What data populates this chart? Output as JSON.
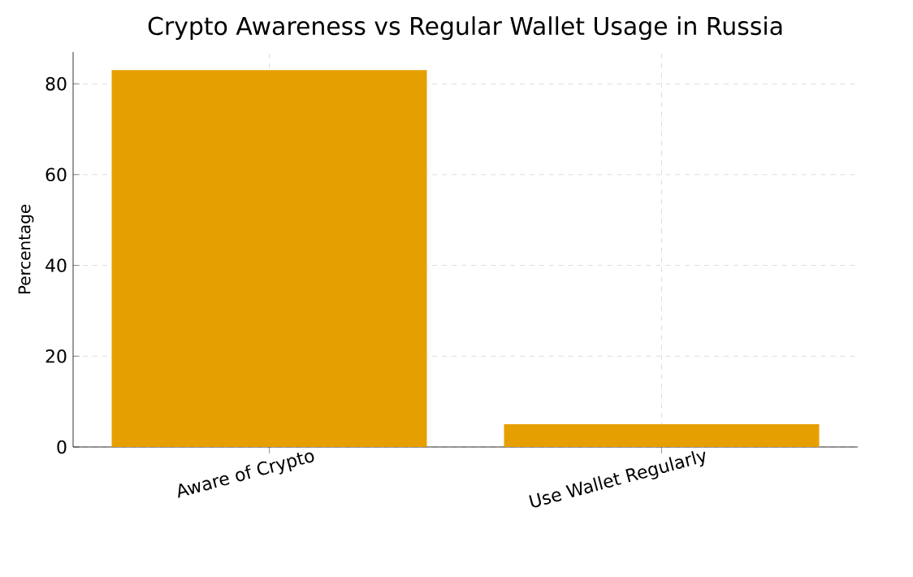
{
  "chart_data": {
    "type": "bar",
    "title": "Crypto Awareness vs Regular Wallet Usage in Russia",
    "ylabel": "Percentage",
    "categories": [
      "Aware of Crypto",
      "Use Wallet Regularly"
    ],
    "values": [
      83,
      5
    ],
    "color": "#e69f00",
    "ylim": [
      0,
      87
    ],
    "yticks": [
      0,
      20,
      40,
      60,
      80
    ],
    "grid": true
  }
}
